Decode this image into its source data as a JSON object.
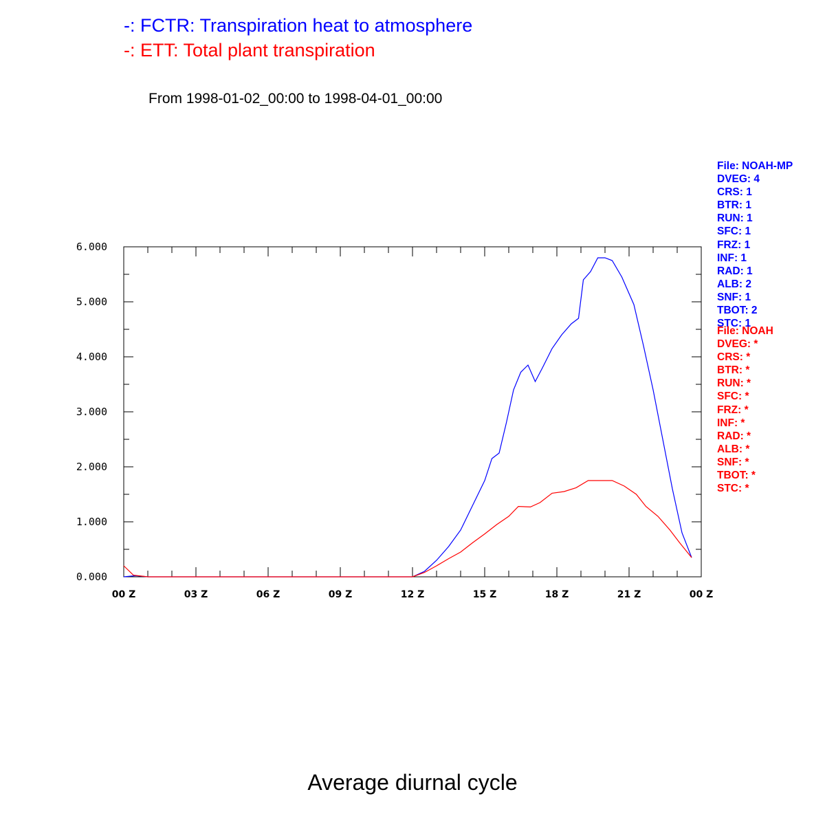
{
  "legend": {
    "series1": "-: FCTR: Transpiration heat to atmosphere",
    "series2": "-: ETT: Total plant transpiration",
    "color1": "#0000ff",
    "color2": "#ff0000"
  },
  "subtitle": "From 1998-01-02_00:00 to 1998-04-01_00:00",
  "footer_title": "Average diurnal cycle",
  "params_file1": [
    "File: NOAH-MP",
    "DVEG: 4",
    "CRS: 1",
    "BTR: 1",
    "RUN: 1",
    "SFC: 1",
    "FRZ: 1",
    "INF: 1",
    "RAD: 1",
    "ALB: 2",
    "SNF: 1",
    "TBOT: 2",
    "STC: 1"
  ],
  "params_file2": [
    "File: NOAH",
    "DVEG: *",
    "CRS: *",
    "BTR: *",
    "RUN: *",
    "SFC: *",
    "FRZ: *",
    "INF: *",
    "RAD: *",
    "ALB: *",
    "SNF: *",
    "TBOT: *",
    "STC: *"
  ],
  "chart_data": {
    "type": "line",
    "title": "",
    "xlabel": "",
    "ylabel": "",
    "x_tick_labels": [
      "00 Z",
      "03 Z",
      "06 Z",
      "09 Z",
      "12 Z",
      "15 Z",
      "18 Z",
      "21 Z",
      "00 Z"
    ],
    "y_tick_labels": [
      "0.000",
      "1.000",
      "2.000",
      "3.000",
      "4.000",
      "5.000",
      "6.000"
    ],
    "xlim": [
      0,
      24
    ],
    "ylim": [
      0,
      6
    ],
    "grid": false,
    "series": [
      {
        "name": "FCTR",
        "color": "#0000ff",
        "points": [
          [
            0,
            0.0
          ],
          [
            0.5,
            0.02
          ],
          [
            1,
            0
          ],
          [
            2,
            0
          ],
          [
            3,
            0
          ],
          [
            4,
            0
          ],
          [
            4.5,
            0
          ],
          [
            6,
            0
          ],
          [
            9,
            0
          ],
          [
            12,
            0
          ],
          [
            12.5,
            0.1
          ],
          [
            13,
            0.3
          ],
          [
            13.5,
            0.55
          ],
          [
            14,
            0.85
          ],
          [
            14.5,
            1.3
          ],
          [
            15,
            1.75
          ],
          [
            15.3,
            2.15
          ],
          [
            15.6,
            2.25
          ],
          [
            15.9,
            2.8
          ],
          [
            16.2,
            3.4
          ],
          [
            16.5,
            3.72
          ],
          [
            16.8,
            3.85
          ],
          [
            17.1,
            3.55
          ],
          [
            17.4,
            3.8
          ],
          [
            17.8,
            4.15
          ],
          [
            18.2,
            4.4
          ],
          [
            18.6,
            4.6
          ],
          [
            18.9,
            4.7
          ],
          [
            19.1,
            5.4
          ],
          [
            19.4,
            5.55
          ],
          [
            19.7,
            5.8
          ],
          [
            20.0,
            5.8
          ],
          [
            20.3,
            5.75
          ],
          [
            20.7,
            5.45
          ],
          [
            21.2,
            4.95
          ],
          [
            21.6,
            4.2
          ],
          [
            22.0,
            3.4
          ],
          [
            22.4,
            2.5
          ],
          [
            22.8,
            1.6
          ],
          [
            23.2,
            0.8
          ],
          [
            23.6,
            0.35
          ]
        ]
      },
      {
        "name": "ETT",
        "color": "#ff0000",
        "points": [
          [
            0,
            0.2
          ],
          [
            0.4,
            0.03
          ],
          [
            1,
            0
          ],
          [
            2,
            0
          ],
          [
            3,
            0
          ],
          [
            4,
            0
          ],
          [
            6,
            0
          ],
          [
            9,
            0
          ],
          [
            12,
            0
          ],
          [
            12.5,
            0.08
          ],
          [
            13,
            0.2
          ],
          [
            13.5,
            0.33
          ],
          [
            14,
            0.45
          ],
          [
            14.5,
            0.62
          ],
          [
            15,
            0.78
          ],
          [
            15.5,
            0.95
          ],
          [
            16,
            1.1
          ],
          [
            16.4,
            1.28
          ],
          [
            16.9,
            1.27
          ],
          [
            17.3,
            1.35
          ],
          [
            17.8,
            1.52
          ],
          [
            18.3,
            1.55
          ],
          [
            18.8,
            1.62
          ],
          [
            19.3,
            1.75
          ],
          [
            19.8,
            1.75
          ],
          [
            20.3,
            1.75
          ],
          [
            20.8,
            1.65
          ],
          [
            21.3,
            1.5
          ],
          [
            21.7,
            1.28
          ],
          [
            22.2,
            1.1
          ],
          [
            22.7,
            0.85
          ],
          [
            23.1,
            0.62
          ],
          [
            23.6,
            0.35
          ]
        ]
      }
    ]
  }
}
